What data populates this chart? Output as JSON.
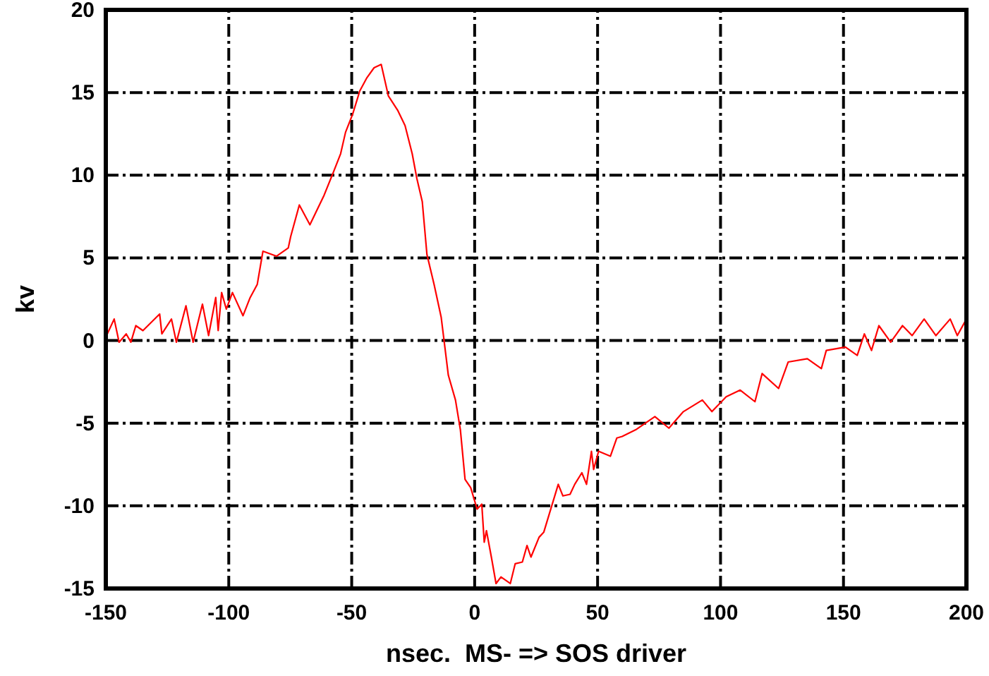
{
  "chart_data": {
    "type": "line",
    "xlabel": "nsec.  MS- => SOS driver",
    "ylabel": "kv",
    "xlim": [
      -150,
      200
    ],
    "xticks": [
      -150,
      -100,
      -50,
      0,
      50,
      100,
      150,
      200
    ],
    "ylim": [
      -15,
      20
    ],
    "yticks": [
      -15,
      -10,
      -5,
      0,
      5,
      10,
      15,
      20
    ],
    "grid": true,
    "marker": "none",
    "line_style": "solid",
    "series": [
      {
        "color": "#ff0000",
        "x": [
          -150,
          -149.4,
          -146.6,
          -144.6,
          -141.7,
          -139.8,
          -137.8,
          -134.9,
          -128.1,
          -127.2,
          -123.3,
          -121.3,
          -117.4,
          -114.5,
          -110.7,
          -108.2,
          -105.3,
          -104.3,
          -102.9,
          -101,
          -98.5,
          -94.2,
          -91.3,
          -88.4,
          -86.1,
          -80.6,
          -75.8,
          -74.8,
          -71.3,
          -67,
          -61.2,
          -57.4,
          -54.5,
          -52.5,
          -49.6,
          -46.7,
          -43.8,
          -40.9,
          -38,
          -35.1,
          -31.2,
          -28.3,
          -25.4,
          -23.5,
          -21.3,
          -19.4,
          -16.5,
          -13.6,
          -10.7,
          -7.8,
          -5.8,
          -3.9,
          -1.6,
          1,
          2.9,
          3.9,
          4.8,
          6.8,
          8.7,
          10.7,
          14.5,
          16.5,
          19.4,
          21.3,
          22.9,
          26.2,
          28.1,
          34,
          35.9,
          38.8,
          40.7,
          43.6,
          45.5,
          47.5,
          48.4,
          50.4,
          55.2,
          57.8,
          60,
          65.5,
          73.3,
          79,
          84.9,
          92.6,
          96.5,
          102.3,
          108,
          114,
          116.9,
          123.6,
          127.5,
          135.3,
          141,
          143,
          150.8,
          155.6,
          158.5,
          161.4,
          164.4,
          169.2,
          174,
          177.9,
          182.8,
          187.6,
          193.4,
          196.3,
          200
        ],
        "values": [
          1.2,
          0.4,
          1.3,
          -0.1,
          0.4,
          -0.1,
          0.9,
          0.6,
          1.6,
          0.4,
          1.3,
          -0.1,
          2.1,
          -0.1,
          2.2,
          0.3,
          2.6,
          0.6,
          2.9,
          1.9,
          2.9,
          1.5,
          2.6,
          3.4,
          5.4,
          5.1,
          5.6,
          6.3,
          8.2,
          7,
          8.8,
          10.2,
          11.3,
          12.6,
          13.7,
          15.1,
          15.9,
          16.5,
          16.7,
          14.8,
          13.9,
          13,
          11.3,
          9.8,
          8.4,
          5.2,
          3.4,
          1.4,
          -2.1,
          -3.6,
          -5.4,
          -8.4,
          -8.9,
          -10.2,
          -9.9,
          -12.2,
          -11.5,
          -13.1,
          -14.7,
          -14.3,
          -14.7,
          -13.5,
          -13.4,
          -12.4,
          -13.1,
          -11.9,
          -11.6,
          -8.7,
          -9.4,
          -9.3,
          -8.7,
          -8,
          -8.7,
          -6.7,
          -7.8,
          -6.7,
          -7,
          -5.9,
          -5.8,
          -5.4,
          -4.6,
          -5.3,
          -4.3,
          -3.6,
          -4.3,
          -3.4,
          -3,
          -3.7,
          -2,
          -2.9,
          -1.3,
          -1.1,
          -1.7,
          -0.6,
          -0.4,
          -0.9,
          0.4,
          -0.6,
          0.9,
          -0.1,
          0.9,
          0.3,
          1.3,
          0.3,
          1.3,
          0.3,
          1.3
        ]
      }
    ]
  }
}
